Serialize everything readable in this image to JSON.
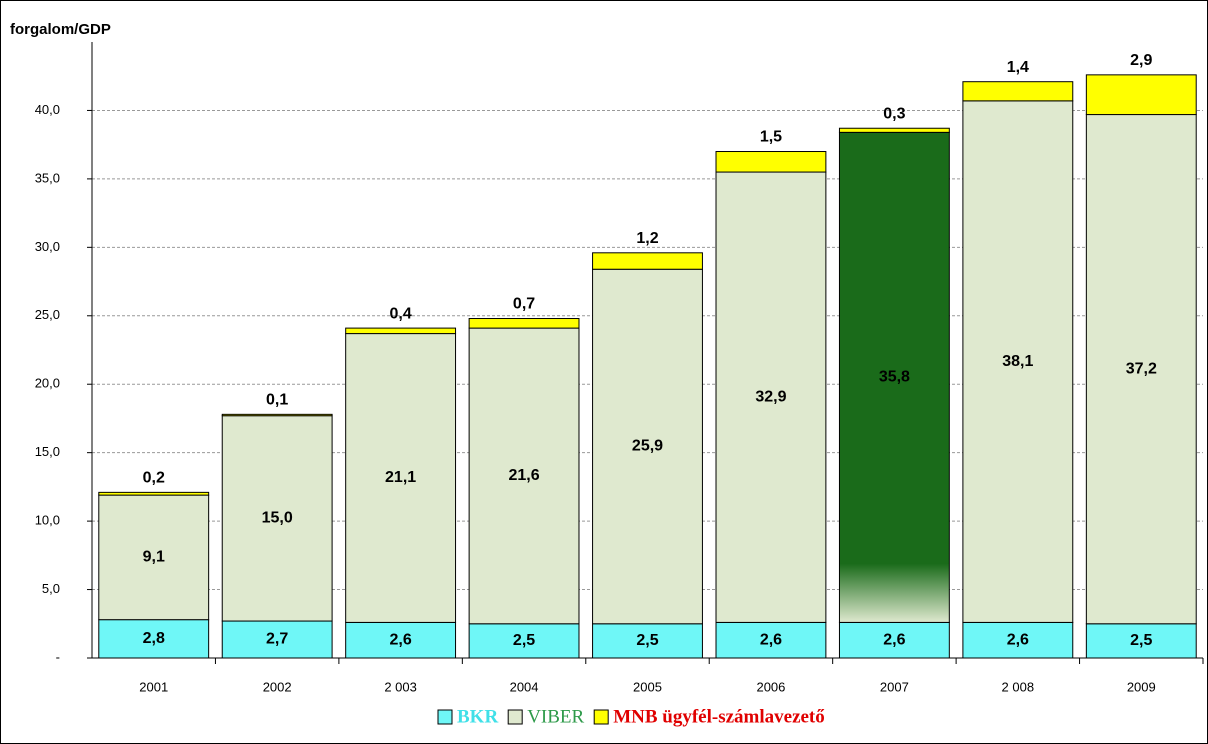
{
  "chart_data": {
    "type": "stacked_bar",
    "y_label": "forgalom/GDP",
    "categories": [
      "2001",
      "2002",
      "2 003",
      "2004",
      "2005",
      "2006",
      "2007",
      "2 008",
      "2009"
    ],
    "series": [
      {
        "name": "BKR",
        "color": "#6ff7f7",
        "values": [
          2.8,
          2.7,
          2.6,
          2.5,
          2.5,
          2.6,
          2.6,
          2.6,
          2.5
        ],
        "value_labels": [
          "2,8",
          "2,7",
          "2,6",
          "2,5",
          "2,5",
          "2,6",
          "2,6",
          "2,6",
          "2,5"
        ]
      },
      {
        "name": "VIBER",
        "color": "#dfe9cf",
        "colors": [
          "#dfe9cf",
          "#dfe9cf",
          "#dfe9cf",
          "#dfe9cf",
          "#dfe9cf",
          "#dfe9cf",
          "#1a6b1a",
          "#dfe9cf",
          "#dfe9cf"
        ],
        "values": [
          9.1,
          15.0,
          21.1,
          21.6,
          25.9,
          32.9,
          35.8,
          38.1,
          37.2
        ],
        "value_labels": [
          "9,1",
          "15,0",
          "21,1",
          "21,6",
          "25,9",
          "32,9",
          "35,8",
          "38,1",
          "37,2"
        ]
      },
      {
        "name": "MNB ügyfél-számlavezető",
        "color": "#ffff00",
        "values": [
          0.2,
          0.1,
          0.4,
          0.7,
          1.2,
          1.5,
          0.3,
          1.4,
          2.9
        ],
        "value_labels": [
          "0,2",
          "0,1",
          "0,4",
          "0,7",
          "1,2",
          "1,5",
          "0,3",
          "1,4",
          "2,9"
        ]
      }
    ],
    "ylim": [
      0,
      45
    ],
    "yticks": [
      {
        "value": 0,
        "label": "-"
      },
      {
        "value": 5,
        "label": "5,0"
      },
      {
        "value": 10,
        "label": "10,0"
      },
      {
        "value": 15,
        "label": "15,0"
      },
      {
        "value": 20,
        "label": "20,0"
      },
      {
        "value": 25,
        "label": "25,0"
      },
      {
        "value": 30,
        "label": "30,0"
      },
      {
        "value": 35,
        "label": "35,0"
      },
      {
        "value": 40,
        "label": "40,0"
      }
    ],
    "grid": true,
    "legend": "bottom"
  }
}
